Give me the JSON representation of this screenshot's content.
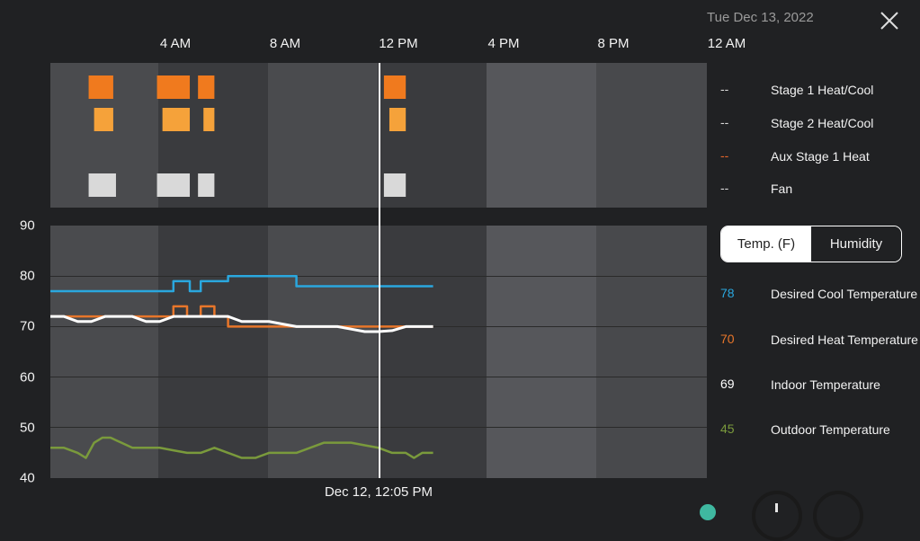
{
  "header": {
    "date": "Tue Dec 13, 2022",
    "close_icon": "close-icon"
  },
  "time_axis": [
    "4 AM",
    "8 AM",
    "12 PM",
    "4 PM",
    "8 PM",
    "12 AM"
  ],
  "equipment_legend": [
    {
      "value": "--",
      "label": "Stage 1 Heat/Cool",
      "color": "#d9d9d9"
    },
    {
      "value": "--",
      "label": "Stage 2 Heat/Cool",
      "color": "#d9d9d9"
    },
    {
      "value": "--",
      "label": "Aux Stage 1 Heat",
      "color": "#e8662a"
    },
    {
      "value": "--",
      "label": "Fan",
      "color": "#d9d9d9"
    }
  ],
  "toggle": {
    "active": "Temp. (F)",
    "inactive": "Humidity"
  },
  "temp_legend": [
    {
      "value": "78",
      "label": "Desired Cool Temperature",
      "color": "#2aa7de"
    },
    {
      "value": "70",
      "label": "Desired Heat Temperature",
      "color": "#e8762a"
    },
    {
      "value": "69",
      "label": "Indoor Temperature",
      "color": "#ffffff"
    },
    {
      "value": "45",
      "label": "Outdoor Temperature",
      "color": "#7a9a3c"
    }
  ],
  "now_label": "Dec 12, 12:05 PM",
  "colors": {
    "stage1": "#f07a1e",
    "stage2": "#f5a23a",
    "fan": "#d9d9d9",
    "cool": "#2aa7de",
    "heat": "#e8762a",
    "indoor": "#ffffff",
    "outdoor": "#7a9a3c"
  },
  "chart_data": {
    "type": "line",
    "x_unit": "hours since midnight Dec 12",
    "ylim": [
      40,
      90
    ],
    "y_ticks": [
      90,
      80,
      70,
      60,
      50,
      40
    ],
    "series": [
      {
        "name": "Desired Cool Temperature",
        "x": [
          0,
          4.5,
          4.5,
          5.1,
          5.1,
          5.5,
          5.5,
          6.5,
          6.5,
          9,
          9,
          14
        ],
        "values": [
          77,
          77,
          79,
          79,
          77,
          77,
          79,
          79,
          80,
          80,
          78,
          78
        ]
      },
      {
        "name": "Desired Heat Temperature",
        "x": [
          0,
          4.5,
          4.5,
          5.0,
          5.0,
          5.5,
          5.5,
          6.0,
          6.0,
          6.5,
          6.5,
          14
        ],
        "values": [
          72,
          72,
          74,
          74,
          72,
          72,
          74,
          74,
          72,
          72,
          70,
          70
        ]
      },
      {
        "name": "Indoor Temperature",
        "x": [
          0,
          0.5,
          1,
          1.5,
          2,
          2.5,
          3,
          3.5,
          4,
          4.5,
          5,
          5.5,
          6,
          6.5,
          7,
          7.5,
          8,
          8.5,
          9,
          9.5,
          10,
          10.5,
          11,
          11.5,
          12,
          12.5,
          13,
          13.5,
          14
        ],
        "values": [
          72,
          72,
          71,
          71,
          72,
          72,
          72,
          71,
          71,
          72,
          72,
          72,
          72,
          72,
          71,
          71,
          71,
          70.5,
          70,
          70,
          70,
          70,
          69.5,
          69,
          69,
          69.2,
          70,
          70,
          70
        ]
      },
      {
        "name": "Outdoor Temperature",
        "x": [
          0,
          0.5,
          1,
          1.3,
          1.6,
          1.9,
          2.2,
          2.6,
          3,
          3.5,
          4,
          4.5,
          5,
          5.5,
          6,
          6.5,
          7,
          7.5,
          8,
          8.5,
          9,
          9.5,
          10,
          10.5,
          11,
          11.5,
          12,
          12.5,
          13,
          13.3,
          13.6,
          14
        ],
        "values": [
          46,
          46,
          45,
          44,
          47,
          48,
          48,
          47,
          46,
          46,
          46,
          45.5,
          45,
          45,
          46,
          45,
          44,
          44,
          45,
          45,
          45,
          46,
          47,
          47,
          47,
          46.5,
          46,
          45,
          45,
          44,
          45,
          45
        ]
      }
    ],
    "equipment": [
      {
        "row": "Stage 1",
        "intervals": [
          [
            1.4,
            2.3
          ],
          [
            3.9,
            5.1
          ],
          [
            5.4,
            6.0
          ],
          [
            12.2,
            13.0
          ]
        ]
      },
      {
        "row": "Stage 2",
        "intervals": [
          [
            1.6,
            2.3
          ],
          [
            4.1,
            5.1
          ],
          [
            5.6,
            6.0
          ],
          [
            12.4,
            13.0
          ]
        ]
      },
      {
        "row": "Fan",
        "intervals": [
          [
            1.4,
            2.4
          ],
          [
            3.9,
            5.1
          ],
          [
            5.4,
            6.0
          ],
          [
            12.2,
            13.0
          ]
        ]
      }
    ]
  }
}
